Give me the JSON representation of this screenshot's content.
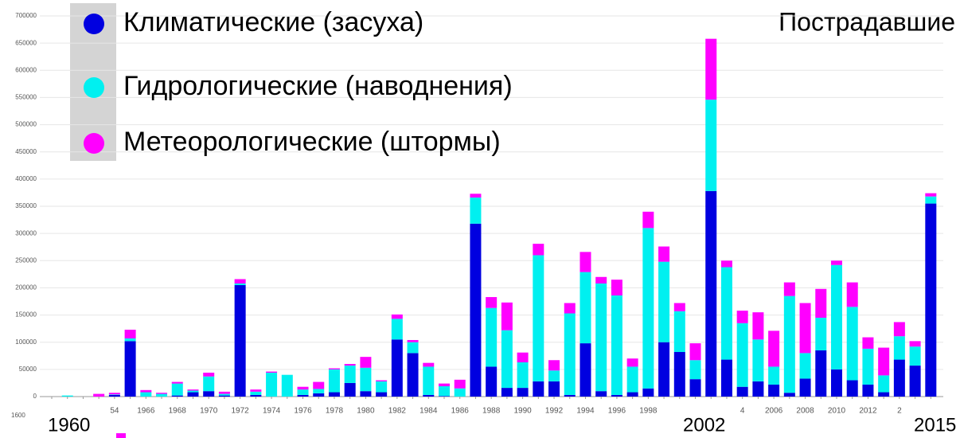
{
  "chart_data": {
    "type": "stacked_bar",
    "title": "Пострадавшие",
    "categories": [
      null,
      null,
      null,
      null,
      "54",
      null,
      "1966",
      null,
      "1968",
      null,
      "1970",
      null,
      "1972",
      null,
      "1974",
      null,
      "1976",
      null,
      "1978",
      null,
      "1980",
      null,
      "1982",
      null,
      "1984",
      null,
      "1986",
      null,
      "1988",
      null,
      "1990",
      null,
      "1992",
      null,
      "1994",
      null,
      "1996",
      null,
      "1998",
      null,
      null,
      null,
      null,
      null,
      "4",
      null,
      "2006",
      null,
      "2008",
      null,
      "2010",
      null,
      "2012",
      null,
      "2",
      null,
      null
    ],
    "series": [
      {
        "name": "Климатические (засуха)",
        "color": "#0000e0",
        "values": [
          0,
          0,
          0,
          0,
          3000,
          102000,
          0,
          0,
          2000,
          8000,
          10000,
          2000,
          205000,
          3000,
          0,
          0,
          3000,
          6000,
          8000,
          25000,
          10000,
          8000,
          105000,
          80000,
          3000,
          1000,
          0,
          318000,
          55000,
          16000,
          16000,
          28000,
          28000,
          3000,
          98000,
          10000,
          3000,
          8000,
          15000,
          100000,
          82000,
          32000,
          378000,
          68000,
          18000,
          28000,
          22000,
          7000,
          33000,
          85000,
          50000,
          30000,
          22000,
          8000,
          68000,
          57000,
          355000
        ]
      },
      {
        "name": "Гидрологические (наводнения)",
        "color": "#00f0f0",
        "values": [
          0,
          2000,
          0,
          0,
          1000,
          5000,
          8000,
          5000,
          22000,
          3000,
          27000,
          3000,
          3000,
          6000,
          44000,
          40000,
          10000,
          8000,
          42000,
          32000,
          43000,
          20000,
          38000,
          20000,
          52000,
          18000,
          15000,
          48000,
          108000,
          106000,
          47000,
          232000,
          20000,
          150000,
          131000,
          198000,
          183000,
          47000,
          295000,
          148000,
          75000,
          35000,
          168000,
          170000,
          117000,
          77000,
          33000,
          178000,
          47000,
          60000,
          192000,
          135000,
          66000,
          31000,
          43000,
          35000,
          13000
        ]
      },
      {
        "name": "Метеорологические (штормы)",
        "color": "#ff00ff",
        "values": [
          0,
          0,
          0,
          5000,
          3000,
          16000,
          4000,
          2000,
          3000,
          2000,
          7000,
          4000,
          8000,
          4000,
          2000,
          0,
          5000,
          13000,
          2000,
          3000,
          20000,
          2000,
          8000,
          4000,
          7000,
          5000,
          16000,
          7000,
          20000,
          51000,
          18000,
          21000,
          19000,
          19000,
          37000,
          12000,
          29000,
          15000,
          30000,
          28000,
          15000,
          31000,
          112000,
          12000,
          23000,
          50000,
          66000,
          25000,
          92000,
          53000,
          8000,
          45000,
          21000,
          51000,
          26000,
          10000,
          6000
        ]
      }
    ],
    "ylim": [
      0,
      700000
    ],
    "yticks": [
      0,
      50000,
      100000,
      150000,
      200000,
      250000,
      300000,
      350000,
      400000,
      450000,
      500000,
      550000,
      600000,
      650000,
      700000
    ],
    "grid": true,
    "legend": "top-left",
    "annotations": [
      "1960",
      "2002",
      "2015",
      "1600"
    ]
  }
}
